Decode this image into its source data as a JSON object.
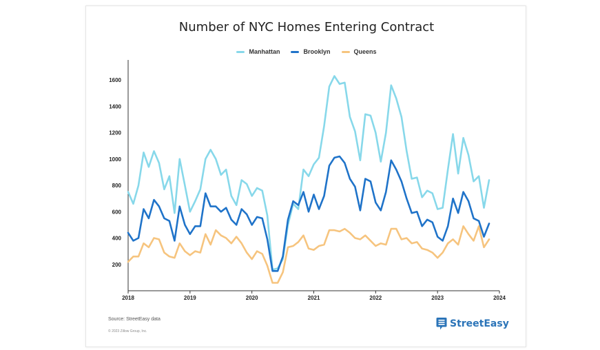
{
  "chart_data": {
    "type": "line",
    "title": "Number of NYC Homes Entering Contract",
    "xlabel": "",
    "ylabel": "",
    "xlim": [
      2018,
      2024
    ],
    "ylim": [
      0,
      1700
    ],
    "x_ticks": [
      "2018",
      "2019",
      "2020",
      "2021",
      "2022",
      "2023",
      "2024"
    ],
    "y_ticks": [
      "200",
      "400",
      "600",
      "800",
      "1000",
      "1200",
      "1400",
      "1600"
    ],
    "legend_position": "top-center",
    "grid": false,
    "colors": {
      "Manhattan": "#87d8ea",
      "Brooklyn": "#1f73c9",
      "Queens": "#f6c47e"
    },
    "series": [
      {
        "name": "Manhattan",
        "values": [
          750,
          660,
          800,
          1050,
          940,
          1060,
          970,
          770,
          870,
          590,
          1000,
          800,
          600,
          680,
          770,
          1000,
          1070,
          1000,
          880,
          920,
          720,
          650,
          840,
          810,
          720,
          780,
          760,
          570,
          160,
          170,
          240,
          500,
          660,
          620,
          920,
          870,
          960,
          1010,
          1250,
          1550,
          1630,
          1570,
          1580,
          1320,
          1210,
          990,
          1340,
          1330,
          1200,
          980,
          1200,
          1560,
          1460,
          1320,
          1060,
          850,
          860,
          710,
          760,
          740,
          620,
          630,
          920,
          1190,
          890,
          1160,
          1030,
          830,
          870,
          630,
          840
        ],
        "x": [
          2018.0,
          2018.083,
          2018.167,
          2018.25,
          2018.333,
          2018.417,
          2018.5,
          2018.583,
          2018.667,
          2018.75,
          2018.833,
          2018.917,
          2019.0,
          2019.083,
          2019.167,
          2019.25,
          2019.333,
          2019.417,
          2019.5,
          2019.583,
          2019.667,
          2019.75,
          2019.833,
          2019.917,
          2020.0,
          2020.083,
          2020.167,
          2020.25,
          2020.333,
          2020.417,
          2020.5,
          2020.583,
          2020.667,
          2020.75,
          2020.833,
          2020.917,
          2021.0,
          2021.083,
          2021.167,
          2021.25,
          2021.333,
          2021.417,
          2021.5,
          2021.583,
          2021.667,
          2021.75,
          2021.833,
          2021.917,
          2022.0,
          2022.083,
          2022.167,
          2022.25,
          2022.333,
          2022.417,
          2022.5,
          2022.583,
          2022.667,
          2022.75,
          2022.833,
          2022.917,
          2023.0,
          2023.083,
          2023.167,
          2023.25,
          2023.333,
          2023.417,
          2023.5,
          2023.583,
          2023.667,
          2023.75,
          2023.833
        ]
      },
      {
        "name": "Brooklyn",
        "values": [
          440,
          380,
          400,
          620,
          550,
          690,
          640,
          550,
          530,
          380,
          640,
          500,
          430,
          490,
          490,
          740,
          640,
          640,
          600,
          630,
          540,
          500,
          620,
          580,
          500,
          560,
          550,
          390,
          150,
          150,
          260,
          540,
          680,
          650,
          750,
          600,
          730,
          620,
          720,
          950,
          1010,
          1020,
          970,
          850,
          790,
          610,
          850,
          830,
          670,
          610,
          750,
          990,
          920,
          830,
          700,
          590,
          600,
          490,
          540,
          520,
          410,
          380,
          490,
          700,
          590,
          750,
          680,
          550,
          530,
          410,
          510
        ],
        "x": [
          2018.0,
          2018.083,
          2018.167,
          2018.25,
          2018.333,
          2018.417,
          2018.5,
          2018.583,
          2018.667,
          2018.75,
          2018.833,
          2018.917,
          2019.0,
          2019.083,
          2019.167,
          2019.25,
          2019.333,
          2019.417,
          2019.5,
          2019.583,
          2019.667,
          2019.75,
          2019.833,
          2019.917,
          2020.0,
          2020.083,
          2020.167,
          2020.25,
          2020.333,
          2020.417,
          2020.5,
          2020.583,
          2020.667,
          2020.75,
          2020.833,
          2020.917,
          2021.0,
          2021.083,
          2021.167,
          2021.25,
          2021.333,
          2021.417,
          2021.5,
          2021.583,
          2021.667,
          2021.75,
          2021.833,
          2021.917,
          2022.0,
          2022.083,
          2022.167,
          2022.25,
          2022.333,
          2022.417,
          2022.5,
          2022.583,
          2022.667,
          2022.75,
          2022.833,
          2022.917,
          2023.0,
          2023.083,
          2023.167,
          2023.25,
          2023.333,
          2023.417,
          2023.5,
          2023.583,
          2023.667,
          2023.75,
          2023.833
        ]
      },
      {
        "name": "Queens",
        "values": [
          220,
          260,
          260,
          360,
          330,
          400,
          390,
          290,
          260,
          250,
          360,
          300,
          270,
          300,
          290,
          430,
          350,
          460,
          420,
          400,
          360,
          410,
          360,
          290,
          240,
          300,
          280,
          190,
          60,
          60,
          140,
          330,
          340,
          370,
          420,
          320,
          310,
          340,
          350,
          460,
          460,
          450,
          470,
          440,
          400,
          390,
          420,
          380,
          340,
          360,
          350,
          470,
          470,
          390,
          400,
          360,
          370,
          320,
          310,
          290,
          250,
          290,
          360,
          390,
          350,
          490,
          430,
          380,
          490,
          330,
          390
        ],
        "x": [
          2018.0,
          2018.083,
          2018.167,
          2018.25,
          2018.333,
          2018.417,
          2018.5,
          2018.583,
          2018.667,
          2018.75,
          2018.833,
          2018.917,
          2019.0,
          2019.083,
          2019.167,
          2019.25,
          2019.333,
          2019.417,
          2019.5,
          2019.583,
          2019.667,
          2019.75,
          2019.833,
          2019.917,
          2020.0,
          2020.083,
          2020.167,
          2020.25,
          2020.333,
          2020.417,
          2020.5,
          2020.583,
          2020.667,
          2020.75,
          2020.833,
          2020.917,
          2021.0,
          2021.083,
          2021.167,
          2021.25,
          2021.333,
          2021.417,
          2021.5,
          2021.583,
          2021.667,
          2021.75,
          2021.833,
          2021.917,
          2022.0,
          2022.083,
          2022.167,
          2022.25,
          2022.333,
          2022.417,
          2022.5,
          2022.583,
          2022.667,
          2022.75,
          2022.833,
          2022.917,
          2023.0,
          2023.083,
          2023.167,
          2023.25,
          2023.333,
          2023.417,
          2023.5,
          2023.583,
          2023.667,
          2023.75,
          2023.833
        ]
      }
    ]
  },
  "footer": {
    "source": "Source: StreetEasy data",
    "copyright": "© 2023 Zillow Group, Inc."
  },
  "logo": {
    "text": "StreetEasy",
    "icon": "streeteasy-pin-icon",
    "color": "#2b74b8"
  }
}
